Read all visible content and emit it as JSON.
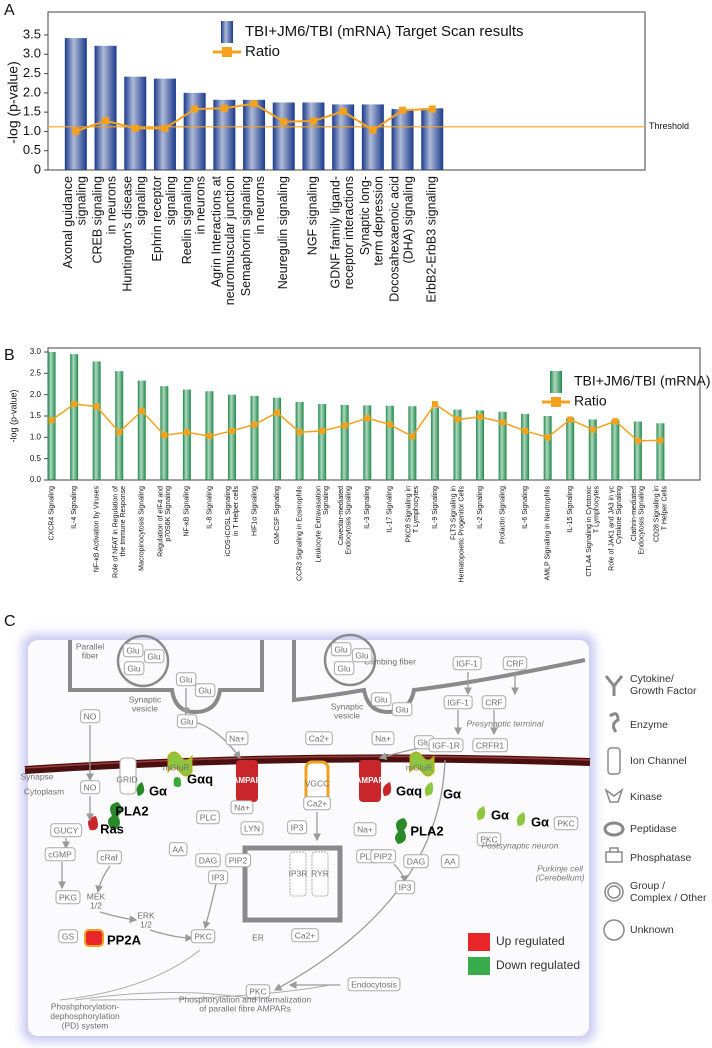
{
  "panels": [
    "A",
    "B",
    "C"
  ],
  "chart_data": [
    {
      "type": "bar",
      "y_label": "-log (p-value)",
      "categories": [
        "Axonal guidance\nsignaling",
        "CREB signaling\nin neurons",
        "Huntington's disease\nsignaling",
        "Ephrin receptor\nsignaling",
        "Reelin signaling\nin neurons",
        "Agrin Interactions at\nneuromuscular junction",
        "Semaphorin signaling\nin neurons",
        "Neuregulin signaling",
        "NGF signaling",
        "GDNF family ligand-\nreceptor interactions",
        "Synaptic long-\nterm depression",
        "Docosahexaenoic acid\n(DHA) signaling",
        "ErbB2-ErbB3 signaling"
      ],
      "series": [
        {
          "name": "TBI+JM6/TBI (mRNA) Target Scan results",
          "color": "#1a3a8c",
          "values": [
            3.42,
            3.22,
            2.42,
            2.37,
            2.0,
            1.82,
            1.82,
            1.75,
            1.75,
            1.7,
            1.7,
            1.58,
            1.6
          ]
        },
        {
          "name": "Ratio",
          "type": "line",
          "color": "#f5a11c",
          "values": [
            1.0,
            1.28,
            1.08,
            1.08,
            1.58,
            1.6,
            1.72,
            1.25,
            1.27,
            1.52,
            1.03,
            1.55,
            1.58
          ]
        }
      ],
      "threshold": {
        "value": 1.12,
        "label": "Threshold"
      },
      "ylim": [
        0,
        3.5
      ],
      "yticks": [
        0,
        0.5,
        {
          "value": 1,
          "label": "1.0"
        },
        1.5,
        {
          "value": 2,
          "label": "2.0"
        },
        2.5,
        {
          "value": 3,
          "label": "3.0"
        },
        3.5
      ],
      "legend": "top"
    },
    {
      "type": "bar",
      "y_label": "-log (p-value)",
      "categories": [
        "CXCR4 Signaling",
        "IL-4 Signaling",
        "NF-κB Activation by Viruses",
        "Role of NFAT in Regulation of\nthe Immune Response",
        "Macropinocytosis Signaling",
        "Regulation of eIF4 and\np70S6K Signaling",
        "NF-κB Signaling",
        "IL-8 Signaling",
        "iCOS-iCOSL Signaling\nin T Helper cells",
        "HIF1α Signaling",
        "GM-CSF Signaling",
        "CCR3 Signaling in Eosinophils",
        "Leukocyte Extravasation\nSignaling",
        "Caveolar-mediated\nEndocytosis Signaling",
        "IL-3 Signaling",
        "IL-17 Signaling",
        "PKCθ Signaling in\nT Lymphocytes",
        "IL-9 Signaling",
        "FLT3 Signaling in\nHematopoietic Progenitor Cells",
        "IL-2 Signaling",
        "Prolactin Signaling",
        "IL-6 Signaling",
        "AMLP Signaling in Neutrophils",
        "IL-15 Signaling",
        "CTLA4 Signaling in Cytotoxic\nT Lymphocytes",
        "Role of JAK1 and JA3 in γc\nCytokine Signaling",
        "Clathrin-mediated\nEndocytosis Signaling",
        "CD28 Signaling in\nT Helper Cells"
      ],
      "series": [
        {
          "name": "TBI+JM6/TBI (mRNA) Target Scan results",
          "color": "#1e8a4a",
          "values": [
            3.0,
            2.95,
            2.78,
            2.55,
            2.33,
            2.2,
            2.12,
            2.08,
            2.0,
            1.97,
            1.93,
            1.83,
            1.78,
            1.76,
            1.75,
            1.74,
            1.73,
            1.7,
            1.65,
            1.63,
            1.6,
            1.55,
            1.5,
            1.45,
            1.42,
            1.4,
            1.37,
            1.33
          ]
        },
        {
          "name": "Ratio",
          "type": "line",
          "color": "#f5a11c",
          "values": [
            1.4,
            1.78,
            1.72,
            1.12,
            1.62,
            1.05,
            1.12,
            1.03,
            1.15,
            1.3,
            1.58,
            1.12,
            1.15,
            1.28,
            1.45,
            1.3,
            1.02,
            1.78,
            1.42,
            1.48,
            1.35,
            1.15,
            1.0,
            1.42,
            1.18,
            1.38,
            0.92,
            0.93
          ]
        }
      ],
      "ylim": [
        0,
        3.0
      ],
      "yticks": [
        {
          "value": 0,
          "label": "0.0"
        },
        0.5,
        {
          "value": 1,
          "label": "1.0"
        },
        1.5,
        {
          "value": 2,
          "label": "2.0"
        },
        2.5,
        {
          "value": 3,
          "label": "3.0"
        }
      ],
      "legend": "top-right"
    }
  ],
  "diagram": {
    "labels": [
      "Parallel\nfiber",
      "Glu",
      "Glu",
      "Glu",
      "Synaptic\nvesicle",
      "NO",
      "Glu",
      "Glu",
      "Climbing fiber",
      "Glu",
      "Glu",
      "Glu",
      "Synaptic\nvesicle",
      "Glu",
      "Glu",
      "IGF-1",
      "CRF",
      "Presynaptic terminal",
      "IGF-1",
      "CRF",
      "Glu",
      "Na+",
      "Ca2+",
      "Na+",
      "Glu",
      "IGF-1R",
      "CRFR1",
      "Synapse",
      "Cytoplasm",
      "GRID",
      "mGluR",
      "AMPAR",
      "VGCC",
      "AMPAR",
      "mGluR",
      "Gαq",
      "Gα",
      "Gαq",
      "Gα",
      "Gα",
      "Gα",
      "PKC",
      "NO",
      "Na+",
      "Ca2+",
      "Na+",
      "PLA2",
      "Ras",
      "PLA2",
      "PLC",
      "LYN",
      "PLC",
      "GUCY",
      "cRaf",
      "cGMP",
      "AA",
      "DAG",
      "PIP2",
      "IP3",
      "IP3",
      "PIP2",
      "DAG",
      "AA",
      "IP3",
      "PKC",
      "Postsynaptic neuron",
      "Purkinje cell\n(Cerebellum)",
      "PKG",
      "MEK\n1/2",
      "ERK\n1/2",
      "GS",
      "PP2A",
      "PKC",
      "ER",
      "Ca2+",
      "PKC",
      "Endocytosis",
      "Phosphorylation and internalization\nof parallel fibre AMPARs",
      "Phoshphorylation-\ndephosphorylation\n(PD) system",
      "IP3R",
      "RYR"
    ],
    "legend": [
      "Cytokine/\nGrowth Factor",
      "Enzyme",
      "Ion Channel",
      "Kinase",
      "Peptidase",
      "Phosphatase",
      "Group /\nComplex / Other",
      "Unknown"
    ],
    "regulation": [
      "Up regulated",
      "Down regulated"
    ]
  }
}
